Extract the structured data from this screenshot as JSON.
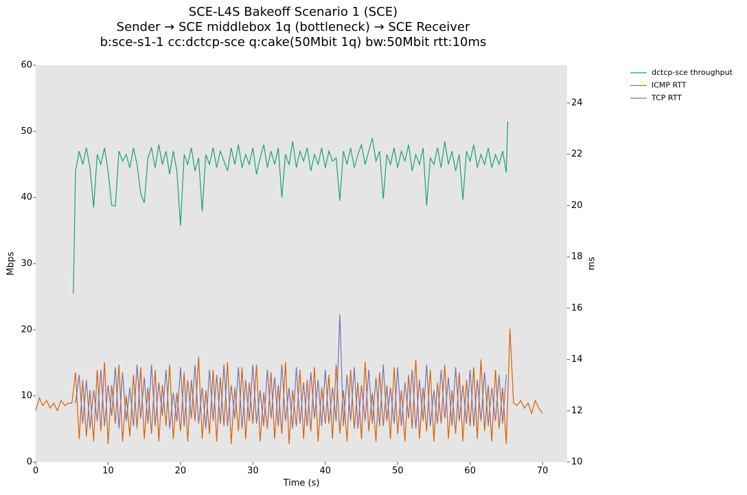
{
  "chart_data": {
    "type": "line",
    "title": [
      "SCE-L4S Bakeoff Scenario 1 (SCE)",
      "Sender → SCE middlebox 1q (bottleneck) → SCE Receiver",
      "b:sce-s1-1 cc:dctcp-sce q:cake(50Mbit 1q) bw:50Mbit rtt:10ms"
    ],
    "xlabel": "Time (s)",
    "ylabel": "Mbps",
    "y2label": "ms",
    "xlim": [
      0,
      73.4
    ],
    "xticks": [
      0,
      10,
      20,
      30,
      40,
      50,
      60,
      70
    ],
    "ylim": [
      0,
      60
    ],
    "yticks": [
      0,
      10,
      20,
      30,
      40,
      50,
      60
    ],
    "y2lim": [
      10,
      25.47
    ],
    "y2ticks": [
      10,
      12,
      14,
      16,
      18,
      20,
      22,
      24
    ],
    "grid": false,
    "legend": "upper right outside",
    "series": [
      {
        "name": "dctcp-sce throughput",
        "color": "#1b9e77",
        "axis": "y",
        "x": [
          5.2,
          5.5,
          6,
          6.5,
          7,
          7.5,
          8,
          8.5,
          9,
          9.5,
          10,
          10.5,
          11,
          11.5,
          12,
          12.5,
          13,
          13.5,
          14,
          14.5,
          15,
          15.5,
          16,
          16.5,
          17,
          17.5,
          18,
          18.5,
          19,
          19.5,
          20,
          20.5,
          21,
          21.5,
          22,
          22.5,
          23,
          23.5,
          24,
          24.5,
          25,
          25.5,
          26,
          26.5,
          27,
          27.5,
          28,
          28.5,
          29,
          29.5,
          30,
          30.5,
          31,
          31.5,
          32,
          32.5,
          33,
          33.5,
          34,
          34.5,
          35,
          35.5,
          36,
          36.5,
          37,
          37.5,
          38,
          38.5,
          39,
          39.5,
          40,
          40.5,
          41,
          41.5,
          42,
          42.5,
          43,
          43.5,
          44,
          44.5,
          45,
          45.5,
          46,
          46.5,
          47,
          47.5,
          48,
          48.5,
          49,
          49.5,
          50,
          50.5,
          51,
          51.5,
          52,
          52.5,
          53,
          53.5,
          54,
          54.5,
          55,
          55.5,
          56,
          56.5,
          57,
          57.5,
          58,
          58.5,
          59,
          59.5,
          60,
          60.5,
          61,
          61.5,
          62,
          62.5,
          63,
          63.5,
          64,
          64.5,
          65,
          65.2
        ],
        "values": [
          25.5,
          44,
          47,
          45,
          47.5,
          44.5,
          38.5,
          46.5,
          45,
          47.5,
          44,
          38.8,
          38.7,
          47,
          45.5,
          46.5,
          44.5,
          47.5,
          45,
          40.6,
          39.2,
          46,
          47.5,
          44.5,
          48,
          45,
          47,
          43.5,
          47,
          44,
          35.7,
          46.5,
          45,
          47.5,
          44,
          46,
          37.9,
          46.5,
          45,
          47.5,
          44.5,
          47,
          45.5,
          44,
          47.5,
          45,
          48,
          44.5,
          46.5,
          45,
          47.5,
          43.5,
          46,
          48,
          44.5,
          47,
          45,
          47.5,
          40,
          46.5,
          45,
          48.5,
          44.5,
          47,
          45.5,
          47.5,
          44,
          46.5,
          45,
          47.5,
          44.5,
          47,
          45.5,
          46,
          39.5,
          47,
          45,
          47.5,
          44.5,
          46.5,
          48,
          45,
          47,
          49,
          45.5,
          47,
          39.8,
          46.5,
          45,
          47.5,
          44.5,
          47,
          45.5,
          48,
          44,
          46.5,
          45,
          47.5,
          38.8,
          46,
          45,
          47.5,
          44.5,
          48.5,
          45,
          47,
          44,
          46.5,
          39.6,
          47,
          45.5,
          48,
          44.5,
          46.5,
          45,
          47.5,
          44.5,
          46.5,
          45,
          47,
          43.8,
          51.5
        ]
      },
      {
        "name": "ICMP RTT",
        "color": "#d95f02",
        "axis": "y2",
        "x": [
          0,
          0.5,
          1,
          1.5,
          2,
          2.5,
          3,
          3.5,
          4,
          4.5,
          5,
          5.5,
          6,
          6.5,
          7,
          7.5,
          8,
          8.5,
          9,
          9.5,
          10,
          10.5,
          11,
          11.5,
          12,
          12.5,
          13,
          13.5,
          14,
          14.5,
          15,
          15.5,
          16,
          16.5,
          17,
          17.5,
          18,
          18.5,
          19,
          19.5,
          20,
          20.5,
          21,
          21.5,
          22,
          22.5,
          23,
          23.5,
          24,
          24.5,
          25,
          25.5,
          26,
          26.5,
          27,
          27.5,
          28,
          28.5,
          29,
          29.5,
          30,
          30.5,
          31,
          31.5,
          32,
          32.5,
          33,
          33.5,
          34,
          34.5,
          35,
          35.5,
          36,
          36.5,
          37,
          37.5,
          38,
          38.5,
          39,
          39.5,
          40,
          40.5,
          41,
          41.5,
          42,
          42.5,
          43,
          43.5,
          44,
          44.5,
          45,
          45.5,
          46,
          46.5,
          47,
          47.5,
          48,
          48.5,
          49,
          49.5,
          50,
          50.5,
          51,
          51.5,
          52,
          52.5,
          53,
          53.5,
          54,
          54.5,
          55,
          55.5,
          56,
          56.5,
          57,
          57.5,
          58,
          58.5,
          59,
          59.5,
          60,
          60.5,
          61,
          61.5,
          62,
          62.5,
          63,
          63.5,
          64,
          64.5,
          65,
          65.5,
          66,
          66.5,
          67,
          67.5,
          68,
          68.5,
          69,
          69.5,
          70
        ],
        "values": [
          12.0,
          12.5,
          12.2,
          12.4,
          12.1,
          12.3,
          12.0,
          12.4,
          12.2,
          12.3,
          12.3,
          13.5,
          10.9,
          13.2,
          11.0,
          12.8,
          10.8,
          13.6,
          11.2,
          13.9,
          10.7,
          13.0,
          11.5,
          13.8,
          10.8,
          12.6,
          11.0,
          13.4,
          11.3,
          13.7,
          10.9,
          12.9,
          11.1,
          13.6,
          10.8,
          13.0,
          11.4,
          13.8,
          10.9,
          12.7,
          11.2,
          13.5,
          10.8,
          13.2,
          11.6,
          14.1,
          10.9,
          12.8,
          11.1,
          13.6,
          10.8,
          13.3,
          11.4,
          13.9,
          10.7,
          12.9,
          11.2,
          13.7,
          10.9,
          13.1,
          11.5,
          13.8,
          10.8,
          12.7,
          11.3,
          13.5,
          10.9,
          13.0,
          11.1,
          13.9,
          10.7,
          12.8,
          11.4,
          13.6,
          10.9,
          13.2,
          11.2,
          13.7,
          10.8,
          12.9,
          11.5,
          13.4,
          10.9,
          13.8,
          11.1,
          12.8,
          10.8,
          13.6,
          11.3,
          13.1,
          10.9,
          13.9,
          11.2,
          12.7,
          10.8,
          13.5,
          11.4,
          13.0,
          10.9,
          13.7,
          11.1,
          12.8,
          10.8,
          13.4,
          11.3,
          14.0,
          10.9,
          12.9,
          11.2,
          13.6,
          10.8,
          13.1,
          11.5,
          13.8,
          10.9,
          12.8,
          11.1,
          13.5,
          10.8,
          13.2,
          11.4,
          13.7,
          10.9,
          14.0,
          11.2,
          13.0,
          10.8,
          13.6,
          11.3,
          12.9,
          10.7,
          15.2,
          12.3,
          12.2,
          12.4,
          12.1,
          12.3,
          11.9,
          12.4,
          12.1,
          11.9
        ]
      },
      {
        "name": "TCP RTT",
        "color": "#7570b3",
        "axis": "y2",
        "x": [
          5.5,
          6,
          6.5,
          7,
          7.5,
          8,
          8.5,
          9,
          9.5,
          10,
          10.5,
          11,
          11.5,
          12,
          12.5,
          13,
          13.5,
          14,
          14.5,
          15,
          15.5,
          16,
          16.5,
          17,
          17.5,
          18,
          18.5,
          19,
          19.5,
          20,
          20.5,
          21,
          21.5,
          22,
          22.5,
          23,
          23.5,
          24,
          24.5,
          25,
          25.5,
          26,
          26.5,
          27,
          27.5,
          28,
          28.5,
          29,
          29.5,
          30,
          30.5,
          31,
          31.5,
          32,
          32.5,
          33,
          33.5,
          34,
          34.5,
          35,
          35.5,
          36,
          36.5,
          37,
          37.5,
          38,
          38.5,
          39,
          39.5,
          40,
          40.5,
          41,
          41.5,
          42,
          42.5,
          43,
          43.5,
          44,
          44.5,
          45,
          45.5,
          46,
          46.5,
          47,
          47.5,
          48,
          48.5,
          49,
          49.5,
          50,
          50.5,
          51,
          51.5,
          52,
          52.5,
          53,
          53.5,
          54,
          54.5,
          55,
          55.5,
          56,
          56.5,
          57,
          57.5,
          58,
          58.5,
          59,
          59.5,
          60,
          60.5,
          61,
          61.5,
          62,
          62.5,
          63,
          63.5,
          64,
          64.5,
          65
        ],
        "values": [
          12.3,
          13.4,
          11.5,
          13.2,
          11.3,
          12.8,
          11.6,
          13.6,
          11.4,
          13.0,
          11.8,
          13.7,
          11.3,
          13.5,
          11.6,
          12.9,
          11.4,
          13.8,
          11.7,
          13.3,
          11.5,
          13.8,
          11.4,
          13.1,
          11.8,
          13.6,
          11.3,
          12.7,
          11.6,
          13.7,
          11.4,
          13.2,
          11.7,
          13.8,
          11.5,
          12.9,
          11.3,
          13.6,
          11.6,
          13.4,
          11.5,
          13.8,
          11.4,
          13.0,
          11.7,
          13.7,
          11.3,
          13.2,
          11.6,
          13.8,
          11.5,
          12.8,
          11.4,
          13.6,
          11.7,
          13.3,
          11.4,
          13.8,
          11.6,
          12.9,
          11.3,
          13.7,
          11.5,
          13.1,
          11.4,
          13.5,
          11.7,
          13.2,
          11.4,
          13.6,
          11.5,
          12.9,
          11.6,
          15.75,
          11.4,
          13.4,
          11.6,
          13.7,
          11.3,
          13.0,
          11.6,
          13.6,
          11.5,
          13.3,
          11.4,
          13.8,
          11.6,
          12.9,
          11.5,
          13.7,
          11.4,
          13.1,
          11.7,
          13.6,
          11.3,
          13.2,
          11.6,
          13.8,
          11.4,
          12.8,
          11.5,
          13.6,
          11.7,
          13.3,
          11.4,
          13.7,
          11.6,
          13.0,
          11.5,
          13.6,
          11.4,
          13.2,
          11.6,
          13.5,
          11.4,
          12.9,
          11.6,
          13.4,
          11.5,
          13.4
        ]
      }
    ]
  }
}
